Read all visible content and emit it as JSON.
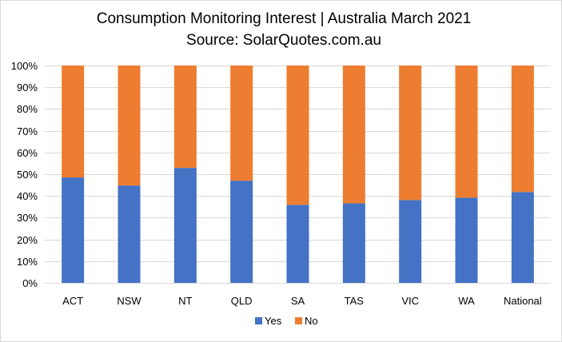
{
  "chart_data": {
    "type": "bar",
    "stacked": true,
    "title": "Consumption Monitoring Interest | Australia March 2021",
    "subtitle": "Source: SolarQuotes.com.au",
    "categories": [
      "ACT",
      "NSW",
      "NT",
      "QLD",
      "SA",
      "TAS",
      "VIC",
      "WA",
      "National"
    ],
    "series": [
      {
        "name": "Yes",
        "color": "#4472c4",
        "values": [
          48.5,
          44.8,
          52.9,
          47.0,
          35.9,
          36.6,
          38.1,
          39.2,
          41.8
        ]
      },
      {
        "name": "No",
        "color": "#ed7d31",
        "values": [
          51.5,
          55.2,
          47.1,
          53.0,
          64.1,
          63.4,
          61.9,
          60.8,
          58.2
        ]
      }
    ],
    "ylim": [
      0,
      100
    ],
    "yticks": [
      "0%",
      "10%",
      "20%",
      "30%",
      "40%",
      "50%",
      "60%",
      "70%",
      "80%",
      "90%",
      "100%"
    ],
    "grid": true,
    "legend": "bottom"
  }
}
